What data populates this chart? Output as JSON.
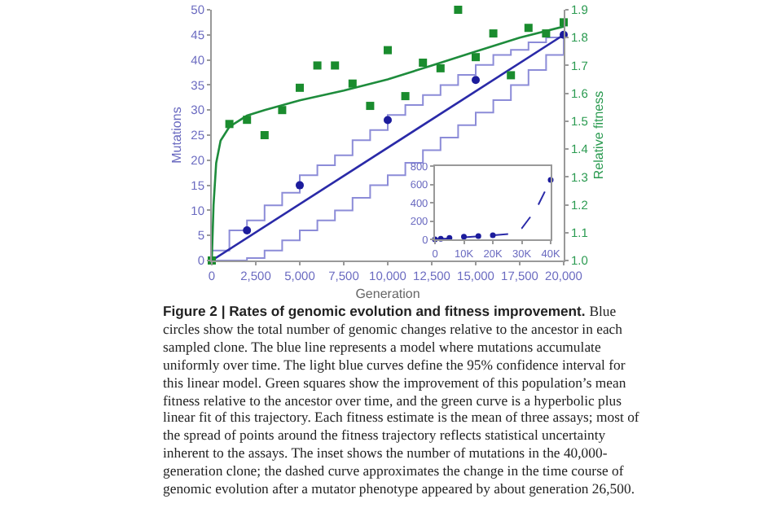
{
  "chart_data": [
    {
      "type": "scatter",
      "xlabel": "Generation",
      "ylabel": "Mutations",
      "y2label": "Relative fitness",
      "xlim": [
        0,
        20000
      ],
      "xticks": [
        0,
        {
          "value": 2500,
          "label": "2,500"
        },
        {
          "value": 5000,
          "label": "5,000"
        },
        {
          "value": 7500,
          "label": "7,500"
        },
        {
          "value": 10000,
          "label": "10,000"
        },
        {
          "value": 12500,
          "label": "12,500"
        },
        {
          "value": 15000,
          "label": "15,000"
        },
        {
          "value": 17500,
          "label": "17,500"
        },
        {
          "value": 20000,
          "label": "20,000"
        }
      ],
      "ylim": [
        0,
        50
      ],
      "yticks": [
        0,
        5,
        10,
        15,
        20,
        25,
        30,
        35,
        40,
        45,
        50
      ],
      "y2lim": [
        1.0,
        1.9
      ],
      "y2ticks": [
        {
          "value": 1.0,
          "label": "1.0"
        },
        1.1,
        1.2,
        1.3,
        1.4,
        1.5,
        1.6,
        1.7,
        1.8,
        1.9
      ],
      "grid": false,
      "series": [
        {
          "type": "step",
          "color": "#8c8cd8",
          "x": [
            0,
            1000,
            2000,
            3000,
            4000,
            5000,
            6000,
            7000,
            8000,
            9000,
            10000,
            11000,
            12000,
            13000,
            14000,
            15000,
            16000,
            17000,
            18000,
            19000,
            20000
          ],
          "values": [
            2,
            6,
            8,
            11,
            13.5,
            17,
            19,
            21,
            24,
            26,
            29,
            31,
            33,
            35,
            37,
            39,
            41,
            42,
            43.5,
            44.5,
            45
          ]
        },
        {
          "type": "step",
          "color": "#8c8cd8",
          "x": [
            0,
            1000,
            2000,
            3000,
            4000,
            5000,
            6000,
            7000,
            8000,
            9000,
            10000,
            11000,
            12000,
            13000,
            14000,
            15000,
            16000,
            17000,
            18000,
            19000,
            20000
          ],
          "values": [
            0,
            0,
            0.5,
            2,
            4,
            6,
            8,
            10,
            12.5,
            15,
            17,
            19.5,
            22,
            24.5,
            27,
            29.5,
            32,
            35,
            38,
            41,
            45
          ]
        },
        {
          "type": "line",
          "color": "#2a2aa8",
          "x": [
            0,
            20000
          ],
          "values": [
            0,
            45
          ]
        },
        {
          "marker": "circle",
          "color": "#1c1c9c",
          "x": [
            2000,
            5000,
            10000,
            15000,
            20000
          ],
          "values": [
            6,
            15,
            28,
            36,
            45
          ]
        },
        {
          "type": "line",
          "axis": "y2",
          "color": "#1e8c3c",
          "x": [
            0,
            100,
            250,
            500,
            1000,
            2000,
            3000,
            5000,
            7500,
            10000,
            12500,
            15000,
            17500,
            20000
          ],
          "values": [
            1.0,
            1.2,
            1.35,
            1.43,
            1.48,
            1.52,
            1.54,
            1.575,
            1.61,
            1.65,
            1.7,
            1.75,
            1.8,
            1.84
          ]
        },
        {
          "marker": "square",
          "axis": "y2",
          "color": "#1a8c2e",
          "x": [
            0,
            1000,
            2000,
            3000,
            4000,
            5000,
            6000,
            7000,
            8000,
            9000,
            10000,
            11000,
            12000,
            13000,
            14000,
            15000,
            16000,
            17000,
            18000,
            19000,
            20000
          ],
          "values": [
            1.0,
            1.49,
            1.505,
            1.45,
            1.54,
            1.62,
            1.7,
            1.7,
            1.635,
            1.555,
            1.755,
            1.59,
            1.71,
            1.69,
            1.9,
            1.73,
            1.815,
            1.665,
            1.835,
            1.815,
            1.855
          ]
        }
      ],
      "annotations": [
        "Figure 2 | Rates of genomic evolution and fitness improvement.",
        "Blue circles show the total number of genomic changes relative to the ancestor in each sampled clone. The blue line represents a model where mutations accumulate uniformly over time. The light blue curves define the 95% confidence interval for this linear model. Green squares show the improvement of this population’s mean fitness relative to the ancestor over time, and the green curve is a hyperbolic plus linear fit of this trajectory. Each fitness estimate is the mean of three assays; most of the spread of points around the fitness trajectory reflects statistical uncertainty inherent to the assays. The inset shows the number of mutations in the 40,000-generation clone; the dashed curve approximates the change in the time course of genomic evolution after a mutator phenotype appeared by about generation 26,500."
      ]
    },
    {
      "type": "line",
      "xlim": [
        0,
        40000
      ],
      "xticks": [
        0,
        {
          "value": 10000,
          "label": "10K"
        },
        {
          "value": 20000,
          "label": "20K"
        },
        {
          "value": 30000,
          "label": "30K"
        },
        {
          "value": 40000,
          "label": "40K"
        }
      ],
      "ylim": [
        0,
        800
      ],
      "yticks": [
        0,
        200,
        400,
        600,
        800
      ],
      "grid": false,
      "series": [
        {
          "line_style": "dashed",
          "color": "#2a2aa8",
          "x": [
            0,
            10000,
            20000,
            26500,
            30000,
            35000,
            40000
          ],
          "values": [
            0,
            22,
            45,
            60,
            120,
            330,
            650
          ]
        },
        {
          "type": "scatter",
          "marker": "circle",
          "color": "#1c1c9c",
          "x": [
            0,
            2000,
            5000,
            10000,
            15000,
            20000,
            40000
          ],
          "values": [
            0,
            6,
            15,
            28,
            36,
            45,
            650
          ]
        }
      ]
    }
  ]
}
